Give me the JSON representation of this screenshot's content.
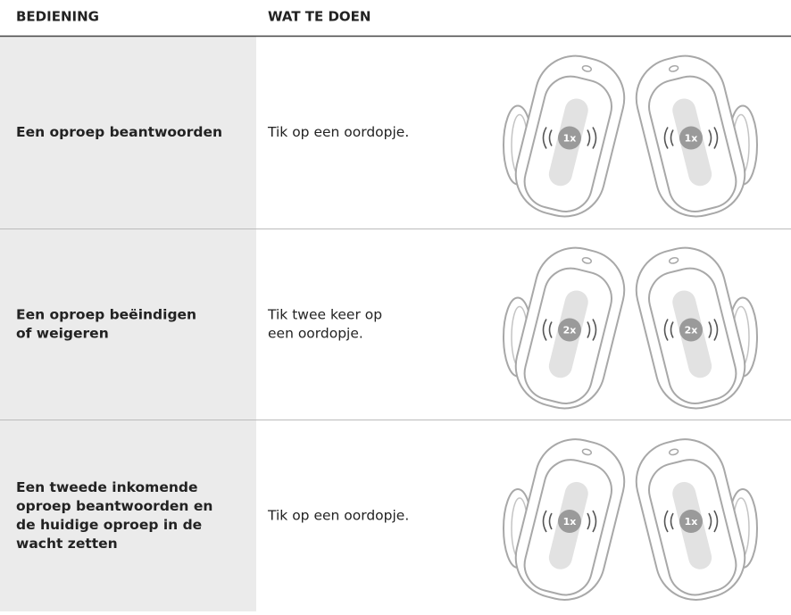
{
  "table": {
    "header": [
      "BEDIENING",
      "WAT TE DOEN"
    ],
    "rows": [
      {
        "control": [
          "Een oproep beantwoorden"
        ],
        "action": [
          "Tik op een oordopje."
        ],
        "taps": [
          "1x",
          "1x"
        ]
      },
      {
        "control": [
          "Een oproep beëindigen",
          "of weigeren"
        ],
        "action": [
          "Tik twee keer op",
          "een oordopje."
        ],
        "taps": [
          "2x",
          "2x"
        ]
      },
      {
        "control": [
          "Een tweede inkomende",
          "oproep beantwoorden en",
          "de huidige oproep in de",
          "wacht zetten"
        ],
        "action": [
          "Tik op een oordopje."
        ],
        "taps": [
          "1x",
          "1x"
        ]
      }
    ]
  }
}
